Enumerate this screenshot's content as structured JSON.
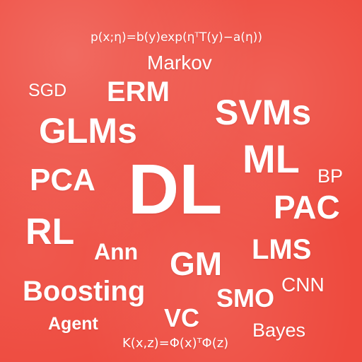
{
  "background_color": "#ee4a3e",
  "text_color": "#ffffff",
  "words": {
    "formula_top": "p(x;η)=b(y)exp(ηᵀT(y)−a(η))",
    "markov": "Markov",
    "sgd": "SGD",
    "erm": "ERM",
    "svms": "SVMs",
    "glms": "GLMs",
    "ml": "ML",
    "bp": "BP",
    "pca": "PCA",
    "dl": "DL",
    "pac": "PAC",
    "rl": "RL",
    "ann": "Ann",
    "lms": "LMS",
    "gm": "GM",
    "cnn": "CNN",
    "boosting": "Boosting",
    "smo": "SMO",
    "vc": "VC",
    "agent": "Agent",
    "bayes": "Bayes",
    "formula_bottom": "K(x,z)=Φ(x)ᵀΦ(z)"
  }
}
